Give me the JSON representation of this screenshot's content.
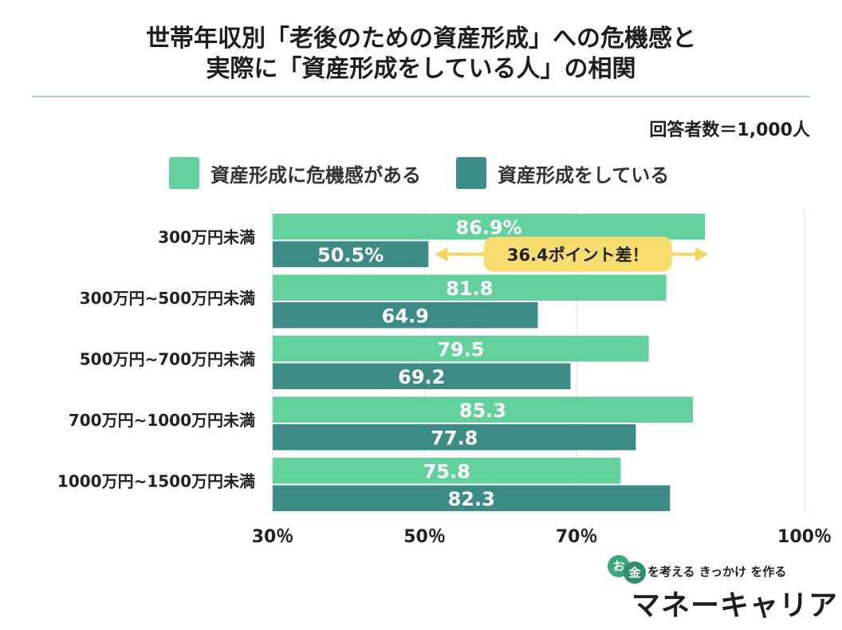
{
  "header": {
    "title_line1": "世帯年収別「老後のための資産形成」への危機感と",
    "title_line2": "実際に「資産形成をしている人」の相関",
    "respondents": "回答者数＝1,000人"
  },
  "colors": {
    "series1": "#62d19b",
    "series2": "#3d8b86",
    "grid": "#e6e6e6",
    "note_bg": "#f7dc6f",
    "arrow": "#f5d65a"
  },
  "chart_data": {
    "type": "bar",
    "orientation": "horizontal",
    "title": "世帯年収別「老後のための資産形成」への危機感と実際に「資産形成をしている人」の相関",
    "categories": [
      "300万円未満",
      "300万円~500万円未満",
      "500万円~700万円未満",
      "700万円~1000万円未満",
      "1000万円~1500万円未満"
    ],
    "series": [
      {
        "name": "資産形成に危機感がある",
        "values": [
          86.9,
          81.8,
          79.5,
          85.3,
          75.8
        ],
        "labels": [
          "86.9%",
          "81.8",
          "79.5",
          "85.3",
          "75.8"
        ]
      },
      {
        "name": "資産形成をしている",
        "values": [
          50.5,
          64.9,
          69.2,
          77.8,
          82.3
        ],
        "labels": [
          "50.5%",
          "64.9",
          "69.2",
          "77.8",
          "82.3"
        ]
      }
    ],
    "xlim": [
      30,
      100
    ],
    "ticks": [
      30,
      50,
      70,
      100
    ],
    "tick_labels": [
      "30％",
      "50％",
      "70％",
      "100％"
    ],
    "legend_position": "top",
    "annotation": {
      "text": "36.4ポイント差！",
      "category": "300万円未満",
      "from": 50.5,
      "to": 86.9
    }
  },
  "logo": {
    "o_char": "お",
    "kane_char": "金",
    "tagline": "を考える きっかけ を作る",
    "name": "マネーキャリア"
  }
}
